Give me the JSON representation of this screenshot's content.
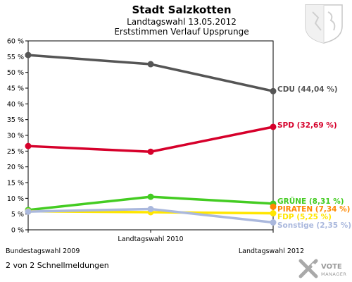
{
  "header": {
    "title": "Stadt Salzkotten",
    "subtitle1": "Landtagswahl 13.05.2012",
    "subtitle2": "Erststimmen Verlauf Upsprunge"
  },
  "footer": {
    "text": "2 von 2 Schnellmeldungen"
  },
  "brand": {
    "name": "VOTE",
    "tagline": "MANAGER"
  },
  "chart_data": {
    "type": "line",
    "categories": [
      "Bundestagswahl 2009",
      "Landtagswahl 2010",
      "Landtagswahl 2012"
    ],
    "ylim": [
      0,
      60
    ],
    "yticks": [
      "0 %",
      "5 %",
      "10 %",
      "15 %",
      "20 %",
      "25 %",
      "30 %",
      "35 %",
      "40 %",
      "45 %",
      "50 %",
      "55 %",
      "60 %"
    ],
    "grid": false,
    "series": [
      {
        "name": "CDU",
        "label": "CDU (44,04 %)",
        "color": "#555555",
        "values": [
          55.5,
          52.6,
          44.04
        ]
      },
      {
        "name": "SPD",
        "label": "SPD (32,69 %)",
        "color": "#d6002b",
        "values": [
          26.6,
          24.8,
          32.69
        ]
      },
      {
        "name": "GRÜNE",
        "label": "GRÜNE (8,31 %)",
        "color": "#44cc22",
        "values": [
          6.3,
          10.5,
          8.31
        ]
      },
      {
        "name": "PIRATEN",
        "label": "PIRATEN (7,34 %)",
        "color": "#ff8800",
        "values": [
          null,
          null,
          7.34
        ]
      },
      {
        "name": "FDP",
        "label": "FDP (5,25 %)",
        "color": "#ffe600",
        "values": [
          5.9,
          5.6,
          5.25
        ]
      },
      {
        "name": "Sonstige",
        "label": "Sonstige (2,35 %)",
        "color": "#aab8dd",
        "values": [
          5.8,
          6.6,
          2.35
        ]
      }
    ]
  }
}
